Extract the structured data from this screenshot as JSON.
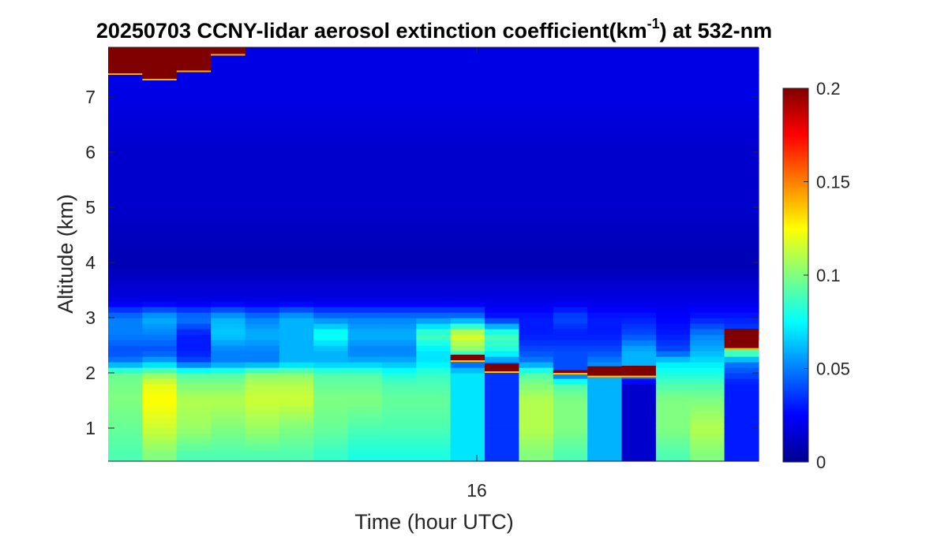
{
  "chart_data": {
    "type": "heatmap",
    "title": {
      "prefix": "20250703 CCNY-lidar aerosol extinction coefficient(km",
      "superscript": "-1",
      "suffix": ") at 532-nm"
    },
    "xlabel": "Time (hour UTC)",
    "ylabel": "Altitude (km)",
    "x_ticks": [
      "16"
    ],
    "y_ticks": [
      "1",
      "2",
      "3",
      "4",
      "5",
      "6",
      "7"
    ],
    "y_range": [
      0.4,
      7.9
    ],
    "colorbar": {
      "colormap": "jet",
      "range": [
        0,
        0.2
      ],
      "ticks": [
        "0",
        "0.05",
        "0.1",
        "0.15",
        "0.2"
      ]
    },
    "profile_altitudes_km": [
      0.5,
      1.0,
      1.5,
      1.8,
      2.0,
      2.2,
      2.4,
      2.7,
      3.0,
      3.3,
      4.0,
      5.0,
      6.0,
      7.0
    ],
    "profiles": [
      {
        "v": [
          0.09,
          0.095,
          0.1,
          0.098,
          0.095,
          0.05,
          0.04,
          0.05,
          0.05,
          0.02,
          0.01,
          0.015,
          0.015,
          0.02
        ],
        "top": 7.4
      },
      {
        "v": [
          0.1,
          0.115,
          0.125,
          0.12,
          0.1,
          0.06,
          0.04,
          0.05,
          0.06,
          0.02,
          0.01,
          0.015,
          0.015,
          0.02
        ],
        "top": 7.3
      },
      {
        "v": [
          0.09,
          0.105,
          0.11,
          0.1,
          0.09,
          0.04,
          0.03,
          0.03,
          0.05,
          0.02,
          0.01,
          0.015,
          0.015,
          0.02
        ],
        "top": 7.45
      },
      {
        "v": [
          0.09,
          0.1,
          0.11,
          0.1,
          0.09,
          0.05,
          0.05,
          0.065,
          0.06,
          0.02,
          0.01,
          0.015,
          0.015,
          0.02
        ],
        "top": 7.75
      },
      {
        "v": [
          0.09,
          0.105,
          0.115,
          0.11,
          0.1,
          0.05,
          0.05,
          0.06,
          0.05,
          0.02,
          0.01,
          0.015,
          0.015,
          0.02
        ],
        "top": null
      },
      {
        "v": [
          0.09,
          0.1,
          0.115,
          0.11,
          0.1,
          0.06,
          0.06,
          0.06,
          0.06,
          0.02,
          0.01,
          0.015,
          0.015,
          0.02
        ],
        "top": null
      },
      {
        "v": [
          0.085,
          0.095,
          0.1,
          0.095,
          0.09,
          0.06,
          0.06,
          0.08,
          0.05,
          0.02,
          0.01,
          0.015,
          0.015,
          0.02
        ],
        "top": null
      },
      {
        "v": [
          0.08,
          0.09,
          0.1,
          0.095,
          0.09,
          0.06,
          0.05,
          0.06,
          0.05,
          0.02,
          0.01,
          0.015,
          0.015,
          0.02
        ],
        "top": null
      },
      {
        "v": [
          0.08,
          0.09,
          0.095,
          0.09,
          0.08,
          0.06,
          0.05,
          0.06,
          0.05,
          0.02,
          0.01,
          0.015,
          0.015,
          0.02
        ],
        "top": null
      },
      {
        "v": [
          0.08,
          0.09,
          0.095,
          0.09,
          0.085,
          0.07,
          0.07,
          0.09,
          0.05,
          0.02,
          0.01,
          0.015,
          0.015,
          0.02
        ],
        "top": null
      },
      {
        "v": [
          0.07,
          0.07,
          0.07,
          0.07,
          0.07,
          0.04,
          0.1,
          0.12,
          0.05,
          0.02,
          0.01,
          0.015,
          0.015,
          0.02
        ],
        "top": null
      },
      {
        "v": [
          0.035,
          0.035,
          0.035,
          0.035,
          0.035,
          0.05,
          0.08,
          0.09,
          0.03,
          0.02,
          0.01,
          0.015,
          0.015,
          0.02
        ],
        "top": null
      },
      {
        "v": [
          0.1,
          0.11,
          0.11,
          0.1,
          0.09,
          0.05,
          0.04,
          0.03,
          0.03,
          0.02,
          0.01,
          0.015,
          0.015,
          0.02
        ],
        "top": null
      },
      {
        "v": [
          0.09,
          0.1,
          0.1,
          0.09,
          0.04,
          0.04,
          0.04,
          0.03,
          0.04,
          0.02,
          0.01,
          0.015,
          0.015,
          0.02
        ],
        "top": null
      },
      {
        "v": [
          0.06,
          0.06,
          0.06,
          0.06,
          0.06,
          0.05,
          0.04,
          0.03,
          0.03,
          0.02,
          0.01,
          0.015,
          0.015,
          0.02
        ],
        "top": null
      },
      {
        "v": [
          0.015,
          0.015,
          0.015,
          0.015,
          0.06,
          0.06,
          0.06,
          0.04,
          0.03,
          0.02,
          0.01,
          0.015,
          0.015,
          0.02
        ],
        "top": null
      },
      {
        "v": [
          0.09,
          0.1,
          0.1,
          0.09,
          0.08,
          0.07,
          0.04,
          0.03,
          0.025,
          0.02,
          0.01,
          0.015,
          0.015,
          0.02
        ],
        "top": null
      },
      {
        "v": [
          0.1,
          0.11,
          0.1,
          0.09,
          0.08,
          0.07,
          0.06,
          0.05,
          0.03,
          0.02,
          0.01,
          0.015,
          0.015,
          0.02
        ],
        "top": null
      },
      {
        "v": [
          0.03,
          0.03,
          0.03,
          0.03,
          0.04,
          0.05,
          0.1,
          0.04,
          0.03,
          0.02,
          0.01,
          0.015,
          0.015,
          0.02
        ],
        "top": null
      }
    ],
    "saturated_layers": [
      {
        "profile": 10,
        "bottom": 2.2,
        "top": 2.33
      },
      {
        "profile": 11,
        "bottom": 2.0,
        "top": 2.17
      },
      {
        "profile": 13,
        "bottom": 1.97,
        "top": 2.05
      },
      {
        "profile": 14,
        "bottom": 1.92,
        "top": 2.12
      },
      {
        "profile": 15,
        "bottom": 1.92,
        "top": 2.13
      },
      {
        "profile": 18,
        "bottom": 2.42,
        "top": 2.8
      }
    ]
  }
}
